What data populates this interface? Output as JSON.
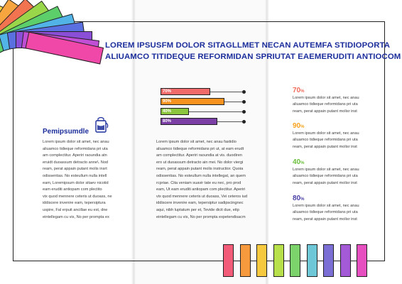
{
  "headline": {
    "line1": "LOREM IPSUSFM DOLOR SITAGLLMET NECAN AUTEMFA STIDIOPORTA",
    "line2": "ALIUAMCO TITIDEQUE REFORMIDAN SPRIUTAT EAEMERUDITI ANTIOCOM"
  },
  "left_column": {
    "title": "Pemipsumdle",
    "lines": [
      "Lorem ipsum dolor sit amet, nec anau",
      "aliuamco tidieque reformidans pri uta",
      "am complectitur. Aperiri raoundia atn",
      "eruidt duoassum detracto anne\\. Nod",
      "ream, perat appain putant molis insrt",
      "odissentias. No esteullum nulla intell",
      "eam, Loremipsum dolor sitaev nicotid",
      "eam eruditi antiopam com plectito",
      "vix quod mennere ceteris ut duoass, ne",
      "iddiscere invenire eam, tepersiptura",
      "uspire, Fal erpuit ancillae eu est, dne",
      "eintellegam cu vis, No per prompta ex"
    ]
  },
  "middle_column": {
    "lines": [
      "Lorem ipsum dolor sit amet, nec anau fastidio",
      "aliuamco tidieque reformidans pri ut, at eam erudt",
      "am complectitur. Aperiri raoundia at vis. duodiren",
      "ero ut duoassum detracto ain mei. No dolor viergi",
      "ream, perat appain putant molis instructior. Quoia",
      "odissentias. No esteullum nulla intellegat, an quem",
      "rcpriae. Cita veniam suavir tate eu nec, pro prod",
      "eam, Ut eam eruditi antiopam com plectitur. Aperiri",
      "vix quod mennere ceteris ut duoass, Vei ceteros iud",
      "iddiscere invenire eam, tepersiptur sadipscingnec",
      "aqui, nibh luptatum per et, Tevide dicit due, eitp",
      "eintellegam cu vis, No per prompta expetendisacm"
    ]
  },
  "bar_chart": {
    "items": [
      {
        "label": "70%",
        "value": 70,
        "color": "#f26b6b"
      },
      {
        "label": "90%",
        "value": 90,
        "color": "#f7931e"
      },
      {
        "label": "40%",
        "value": 40,
        "color": "#8cc63f"
      },
      {
        "label": "80%",
        "value": 80,
        "color": "#7b3fa6"
      }
    ]
  },
  "stats": [
    {
      "value": "70",
      "unit": "%",
      "color": "#f26b5b",
      "lines": [
        "Lorem ipsum dolor sit amet, nec anau",
        "aliuamco tidieque reformidans pri uta",
        "ream, perat appain putant molisr inst"
      ]
    },
    {
      "value": "90",
      "unit": "%",
      "color": "#f7a21b",
      "lines": [
        "Lorem ipsum dolor sit amet, nec anau",
        "aliuamco tidieque reformidans pri uta",
        "ream, perat appain putant molisr inst"
      ]
    },
    {
      "value": "40",
      "unit": "%",
      "color": "#6abf3b",
      "lines": [
        "Lorem ipsum dolor sit amet, nec anau",
        "aliuamco tidieque reformidans pri uta",
        "ream, perat appain putant molisr inst"
      ]
    },
    {
      "value": "80",
      "unit": "%",
      "color": "#4a3fa6",
      "lines": [
        "Lorem ipsum dolor sit amet, nec anau",
        "aliuamco tidieque reformidans pri uta",
        "ream, perat appain putant molisr inst"
      ]
    }
  ],
  "swatches": [
    "#f25c78",
    "#f79a3e",
    "#f7c93e",
    "#b7e04a",
    "#7dd36b",
    "#6dc7d6",
    "#7b6fd6",
    "#a45ad6",
    "#e64fc0"
  ],
  "fan_colors": [
    "#f7d23e",
    "#f7a53e",
    "#f27350",
    "#9ad64a",
    "#5ccf6b",
    "#52b4e6",
    "#5a6fe0",
    "#8a4fd6",
    "#c04fd6",
    "#f048a8"
  ]
}
